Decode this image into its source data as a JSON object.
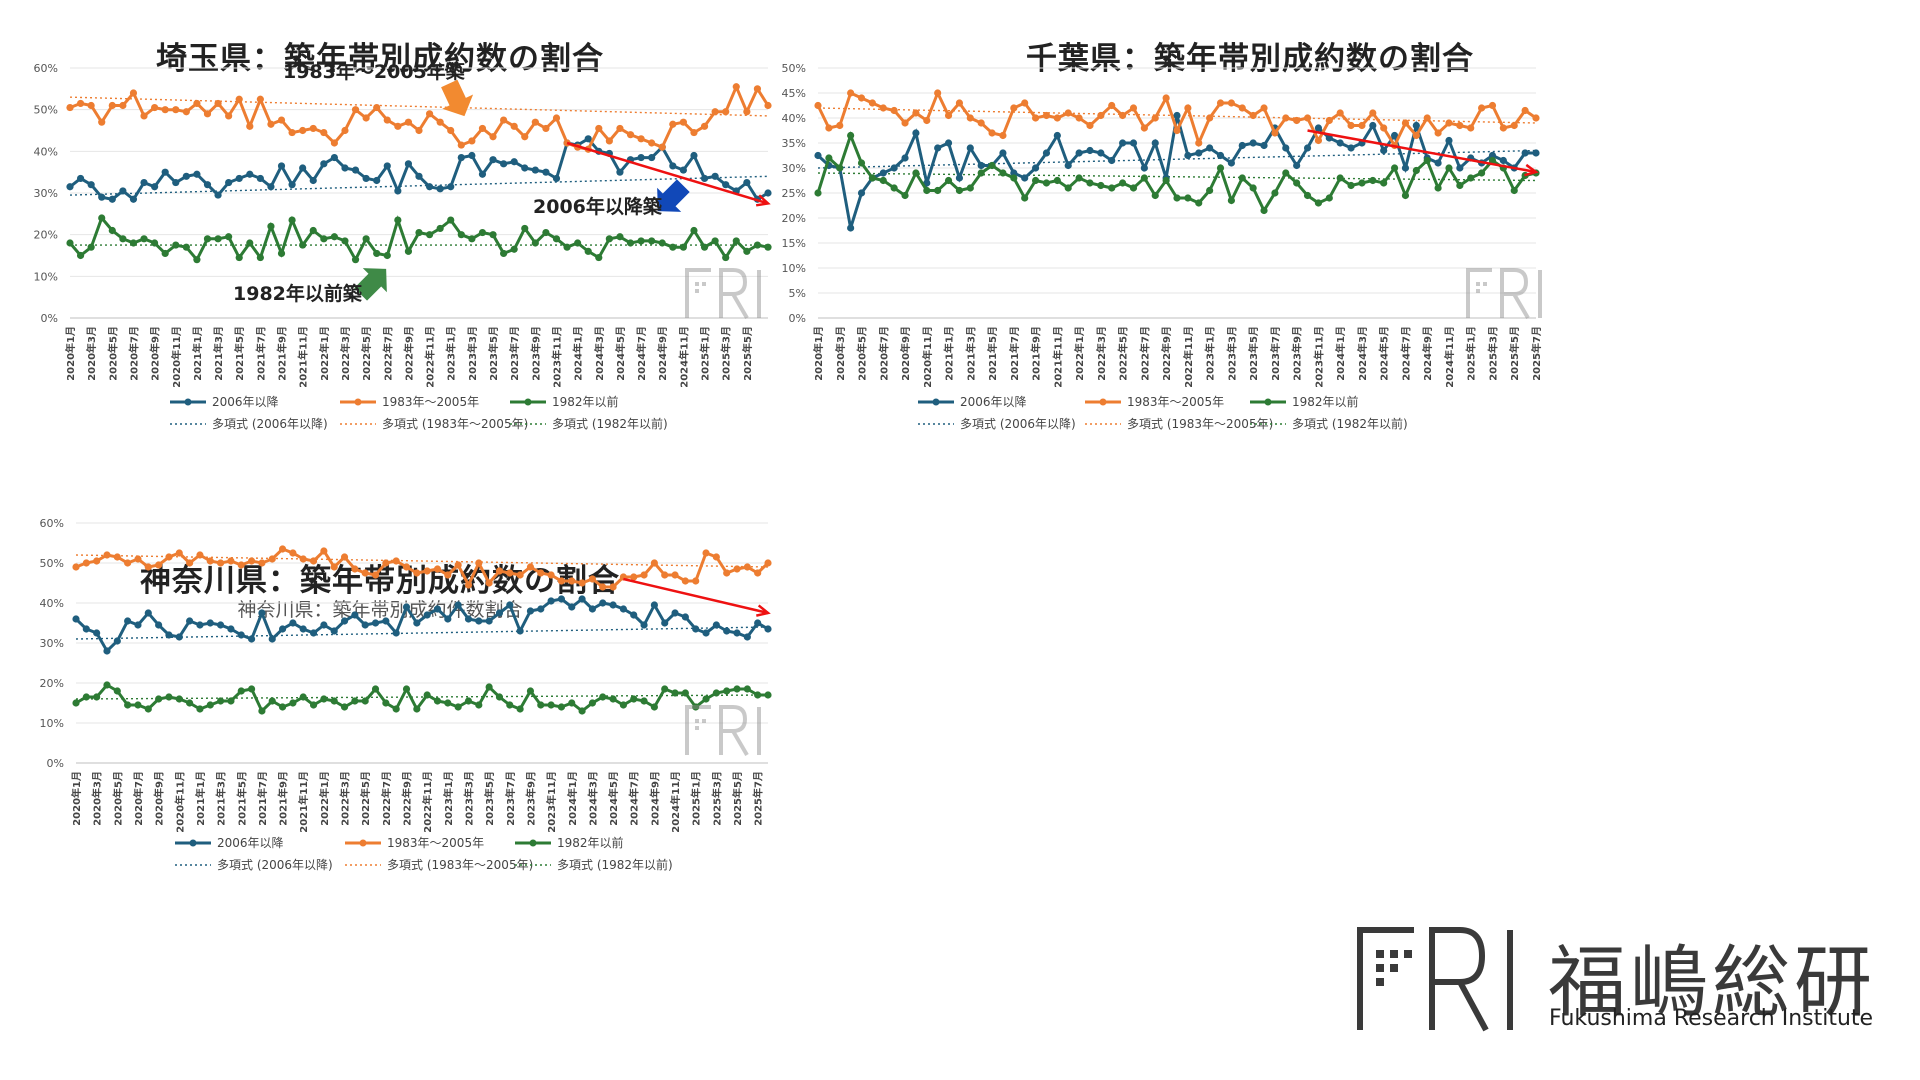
{
  "colors": {
    "new": "#1f5e7e",
    "mid": "#ed7d31",
    "old": "#2d7b34",
    "arrow_red": "#ee1111",
    "arrow_orange": "#f28a30",
    "arrow_blue": "#1148b8",
    "arrow_green": "#3f8a47",
    "grid": "#e6e6e6",
    "axis": "#bfbfbf"
  },
  "legend": {
    "new": "2006年以降",
    "mid": "1983年～2005年",
    "old": "1982年以前",
    "trend_new": "多項式 (2006年以降)",
    "trend_mid": "多項式 (1983年～2005年)",
    "trend_old": "多項式 (1982年以前)"
  },
  "logo": {
    "mark": "FRI",
    "name_jp": "福嶋総研",
    "name_en": "Fukushima Research Institute"
  },
  "watermark": "FRI",
  "annotations": {
    "saitama_mid": "1983年～2005年築",
    "saitama_new": "2006年以降築",
    "saitama_old": "1982年以前築"
  },
  "chart_data": [
    {
      "id": "saitama",
      "type": "line",
      "title": "埼玉県：築年帯別成約数の割合",
      "subtitle": "",
      "x_start": "2020年1月",
      "x_end": "2025年7月",
      "x_tick_labels": [
        "2020年1月",
        "2020年3月",
        "2020年5月",
        "2020年7月",
        "2020年9月",
        "2020年11月",
        "2021年1月",
        "2021年3月",
        "2021年5月",
        "2021年7月",
        "2021年9月",
        "2021年11月",
        "2022年1月",
        "2022年3月",
        "2022年5月",
        "2022年7月",
        "2022年9月",
        "2022年11月",
        "2023年1月",
        "2023年3月",
        "2023年5月",
        "2023年7月",
        "2023年9月",
        "2023年11月",
        "2024年1月",
        "2024年3月",
        "2024年5月",
        "2024年7月",
        "2024年9月",
        "2024年11月",
        "2025年1月",
        "2025年3月",
        "2025年5月"
      ],
      "y_ticks": [
        "0%",
        "10%",
        "20%",
        "30%",
        "40%",
        "50%",
        "60%"
      ],
      "ylim": [
        0,
        60
      ],
      "series": [
        {
          "key": "new",
          "name": "2006年以降",
          "values": [
            31.5,
            33.5,
            32,
            29,
            28.5,
            30.5,
            28.5,
            32.5,
            31.5,
            35,
            32.5,
            34,
            34.5,
            32,
            29.5,
            32.5,
            33.5,
            34.5,
            33.5,
            31.5,
            36.5,
            32,
            36,
            33,
            37,
            38.5,
            36,
            35.5,
            33.5,
            33,
            36.5,
            30.5,
            37,
            34,
            31.5,
            31,
            31.5,
            38.5,
            39,
            34.5,
            38,
            37,
            37.5,
            36,
            35.5,
            35,
            33.5,
            42,
            41.5,
            43,
            40,
            39.5,
            35,
            38,
            38.5,
            38.5,
            41,
            36.5,
            35.5,
            39,
            33.5,
            34,
            32,
            30.5,
            32.5,
            28.5,
            30
          ]
        },
        {
          "key": "mid",
          "name": "1983年～2005年",
          "values": [
            50.5,
            51.5,
            51,
            47,
            51,
            51,
            54,
            48.5,
            50.5,
            50,
            50,
            49.5,
            51.5,
            49,
            51.5,
            48.5,
            52.5,
            46,
            52.5,
            46.5,
            47.5,
            44.5,
            45,
            45.5,
            44.5,
            42,
            45,
            50,
            48,
            50.5,
            47.5,
            46,
            47,
            45,
            49,
            47,
            45,
            41.5,
            42.5,
            45.5,
            43.5,
            47.5,
            46,
            43.5,
            47,
            45.5,
            48,
            42,
            41,
            40.5,
            45.5,
            42.5,
            45.5,
            44,
            43,
            42,
            41,
            46.5,
            47,
            44.5,
            46,
            49.5,
            49.5,
            55.5,
            49.5,
            55,
            51
          ]
        },
        {
          "key": "old",
          "name": "1982年以前",
          "values": [
            18,
            15,
            17,
            24,
            21,
            19,
            18,
            19,
            18,
            15.5,
            17.5,
            17,
            14,
            19,
            19,
            19.5,
            14.5,
            18,
            14.5,
            22,
            15.5,
            23.5,
            17.5,
            21,
            19,
            19.5,
            18.5,
            14,
            19,
            15.5,
            15,
            23.5,
            16,
            20.5,
            20,
            21.5,
            23.5,
            20,
            19,
            20.5,
            20,
            15.5,
            16.5,
            21.5,
            18,
            20.5,
            19,
            17,
            18,
            16,
            14.5,
            19,
            19.5,
            18,
            18.5,
            18.5,
            18,
            17,
            17,
            21,
            17,
            18.5,
            14.5,
            18.5,
            16,
            17.5,
            17
          ]
        }
      ],
      "trend": {
        "new": [
          29.5,
          34
        ],
        "mid": [
          53,
          48.5
        ],
        "old": [
          17.5,
          17.5
        ]
      }
    },
    {
      "id": "chiba",
      "type": "line",
      "title": "千葉県：築年帯別成約数の割合",
      "subtitle": "",
      "x_start": "2020年1月",
      "x_end": "2025年7月",
      "x_tick_labels": [
        "2020年1月",
        "2020年3月",
        "2020年5月",
        "2020年7月",
        "2020年9月",
        "2020年11月",
        "2021年1月",
        "2021年3月",
        "2021年5月",
        "2021年7月",
        "2021年9月",
        "2021年11月",
        "2022年1月",
        "2022年3月",
        "2022年5月",
        "2022年7月",
        "2022年9月",
        "2022年11月",
        "2023年1月",
        "2023年3月",
        "2023年5月",
        "2023年7月",
        "2023年9月",
        "2023年11月",
        "2024年1月",
        "2024年3月",
        "2024年5月",
        "2024年7月",
        "2024年9月",
        "2024年11月",
        "2025年1月",
        "2025年3月",
        "2025年5月",
        "2025年7月"
      ],
      "y_ticks": [
        "0%",
        "5%",
        "10%",
        "15%",
        "20%",
        "25%",
        "30%",
        "35%",
        "40%",
        "45%",
        "50%"
      ],
      "ylim": [
        0,
        50
      ],
      "series": [
        {
          "key": "new",
          "name": "2006年以降",
          "values": [
            32.5,
            30.5,
            30,
            18,
            25,
            28,
            29,
            30,
            32,
            37,
            27,
            34,
            35,
            28,
            34,
            30.5,
            30.5,
            33,
            29,
            28,
            30,
            33,
            36.5,
            30.5,
            33,
            33.5,
            33,
            31.5,
            35,
            35,
            30,
            35,
            28,
            40.5,
            32.5,
            33,
            34,
            32.5,
            31,
            34.5,
            35,
            34.5,
            38,
            34,
            30.5,
            34,
            38,
            36,
            35,
            34,
            35,
            38.5,
            33.5,
            36.5,
            30,
            38.5,
            32,
            31,
            35.5,
            30,
            32,
            31,
            32.5,
            31.5,
            30,
            33,
            33
          ]
        },
        {
          "key": "mid",
          "name": "1983年～2005年",
          "values": [
            42.5,
            38,
            38.5,
            45,
            44,
            43,
            42,
            41.5,
            39,
            41,
            39.5,
            45,
            40.5,
            43,
            40,
            39,
            37,
            36.5,
            42,
            43,
            40,
            40.5,
            40,
            41,
            40,
            38.5,
            40.5,
            42.5,
            40.5,
            42,
            38,
            40,
            44,
            37.5,
            42,
            35,
            40,
            43,
            43,
            42,
            40.5,
            42,
            37,
            40,
            39.5,
            40,
            35.5,
            39.5,
            41,
            38.5,
            38.5,
            41,
            38,
            34.5,
            39,
            36.5,
            40,
            37,
            39,
            38.5,
            38,
            42,
            42.5,
            38,
            38.5,
            41.5,
            40
          ]
        },
        {
          "key": "old",
          "name": "1982年以前",
          "values": [
            25,
            32,
            30,
            36.5,
            31,
            28,
            27.5,
            26,
            24.5,
            29,
            25.5,
            25.5,
            27.5,
            25.5,
            26,
            29,
            30.5,
            29,
            28,
            24,
            27.5,
            27,
            27.5,
            26,
            28,
            27,
            26.5,
            26,
            27,
            26,
            28,
            24.5,
            27.5,
            24,
            24,
            23,
            25.5,
            30,
            23.5,
            28,
            26,
            21.5,
            25,
            29,
            27,
            24.5,
            23,
            24,
            28,
            26.5,
            27,
            27.5,
            27,
            30,
            24.5,
            29.5,
            31.5,
            26,
            30,
            26.5,
            28,
            29,
            31.5,
            30,
            25.5,
            28.5,
            29
          ]
        }
      ],
      "trend": {
        "new": [
          30,
          33.5
        ],
        "mid": [
          42,
          39
        ],
        "old": [
          29,
          27.5
        ]
      }
    },
    {
      "id": "kanagawa",
      "type": "line",
      "title": "神奈川県：築年帯別成約数の割合",
      "subtitle": "神奈川県：築年帯別成約件数割合",
      "x_start": "2020年1月",
      "x_end": "2025年7月",
      "x_tick_labels": [
        "2020年1月",
        "2020年3月",
        "2020年5月",
        "2020年7月",
        "2020年9月",
        "2020年11月",
        "2021年1月",
        "2021年3月",
        "2021年5月",
        "2021年7月",
        "2021年9月",
        "2021年11月",
        "2022年1月",
        "2022年3月",
        "2022年5月",
        "2022年7月",
        "2022年9月",
        "2022年11月",
        "2023年1月",
        "2023年3月",
        "2023年5月",
        "2023年7月",
        "2023年9月",
        "2023年11月",
        "2024年1月",
        "2024年3月",
        "2024年5月",
        "2024年7月",
        "2024年9月",
        "2024年11月",
        "2025年1月",
        "2025年3月",
        "2025年5月",
        "2025年7月"
      ],
      "y_ticks": [
        "0%",
        "10%",
        "20%",
        "30%",
        "40%",
        "50%",
        "60%"
      ],
      "ylim": [
        0,
        60
      ],
      "series": [
        {
          "key": "new",
          "name": "2006年以降",
          "values": [
            36,
            33.5,
            32.5,
            28,
            30.5,
            35.5,
            34.5,
            37.5,
            34.5,
            32,
            31.5,
            35.5,
            34.5,
            35,
            34.5,
            33.5,
            32,
            31,
            37.5,
            31,
            33.5,
            35,
            33.5,
            32.5,
            34.5,
            33,
            35.5,
            37,
            34.5,
            35,
            35.5,
            32.5,
            39,
            35,
            37,
            38.5,
            36,
            39.5,
            36,
            35.5,
            35.5,
            37.5,
            39.5,
            33,
            38,
            38.5,
            40.5,
            41,
            39,
            41,
            38.5,
            40,
            39.5,
            38.5,
            37,
            34.5,
            39.5,
            35,
            37.5,
            36.5,
            33.5,
            32.5,
            34.5,
            33,
            32.5,
            31.5,
            35,
            33.5
          ]
        },
        {
          "key": "mid",
          "name": "1983年～2005年",
          "values": [
            49,
            50,
            50.5,
            52,
            51.5,
            50,
            51,
            49,
            49.5,
            51.5,
            52.5,
            50,
            52,
            50.5,
            50,
            50.5,
            49.5,
            50.5,
            50,
            51,
            53.5,
            52.5,
            51,
            50.5,
            53,
            49,
            51.5,
            48.5,
            47.5,
            47,
            50,
            50.5,
            49,
            47.5,
            48,
            48.5,
            47,
            49.5,
            44.5,
            50,
            45,
            48,
            47.5,
            47,
            49,
            47.5,
            47,
            45.5,
            45.5,
            45,
            46,
            44,
            44,
            46.5,
            46.5,
            47,
            50,
            47,
            47,
            45.5,
            45.5,
            52.5,
            51.5,
            47.5,
            48.5,
            49,
            47.5,
            50
          ]
        },
        {
          "key": "old",
          "name": "1982年以前",
          "values": [
            15,
            16.5,
            16.5,
            19.5,
            18,
            14.5,
            14.5,
            13.5,
            16,
            16.5,
            16,
            15,
            13.5,
            14.5,
            15.5,
            15.5,
            18,
            18.5,
            13,
            15.5,
            14,
            15,
            16.5,
            14.5,
            16,
            15.5,
            14,
            15.5,
            15.5,
            18.5,
            15,
            13.5,
            18.5,
            13.5,
            17,
            15.5,
            15,
            14,
            15.5,
            14.5,
            19,
            16.5,
            14.5,
            13.5,
            18,
            14.5,
            14.5,
            14,
            15,
            13,
            15,
            16.5,
            16,
            14.5,
            16,
            15.5,
            14,
            18.5,
            17.5,
            17.5,
            14,
            16,
            17.5,
            18,
            18.5,
            18.5,
            17,
            17
          ]
        }
      ],
      "trend": {
        "new": [
          31,
          34
        ],
        "mid": [
          52,
          49
        ],
        "old": [
          16,
          17
        ]
      }
    }
  ]
}
